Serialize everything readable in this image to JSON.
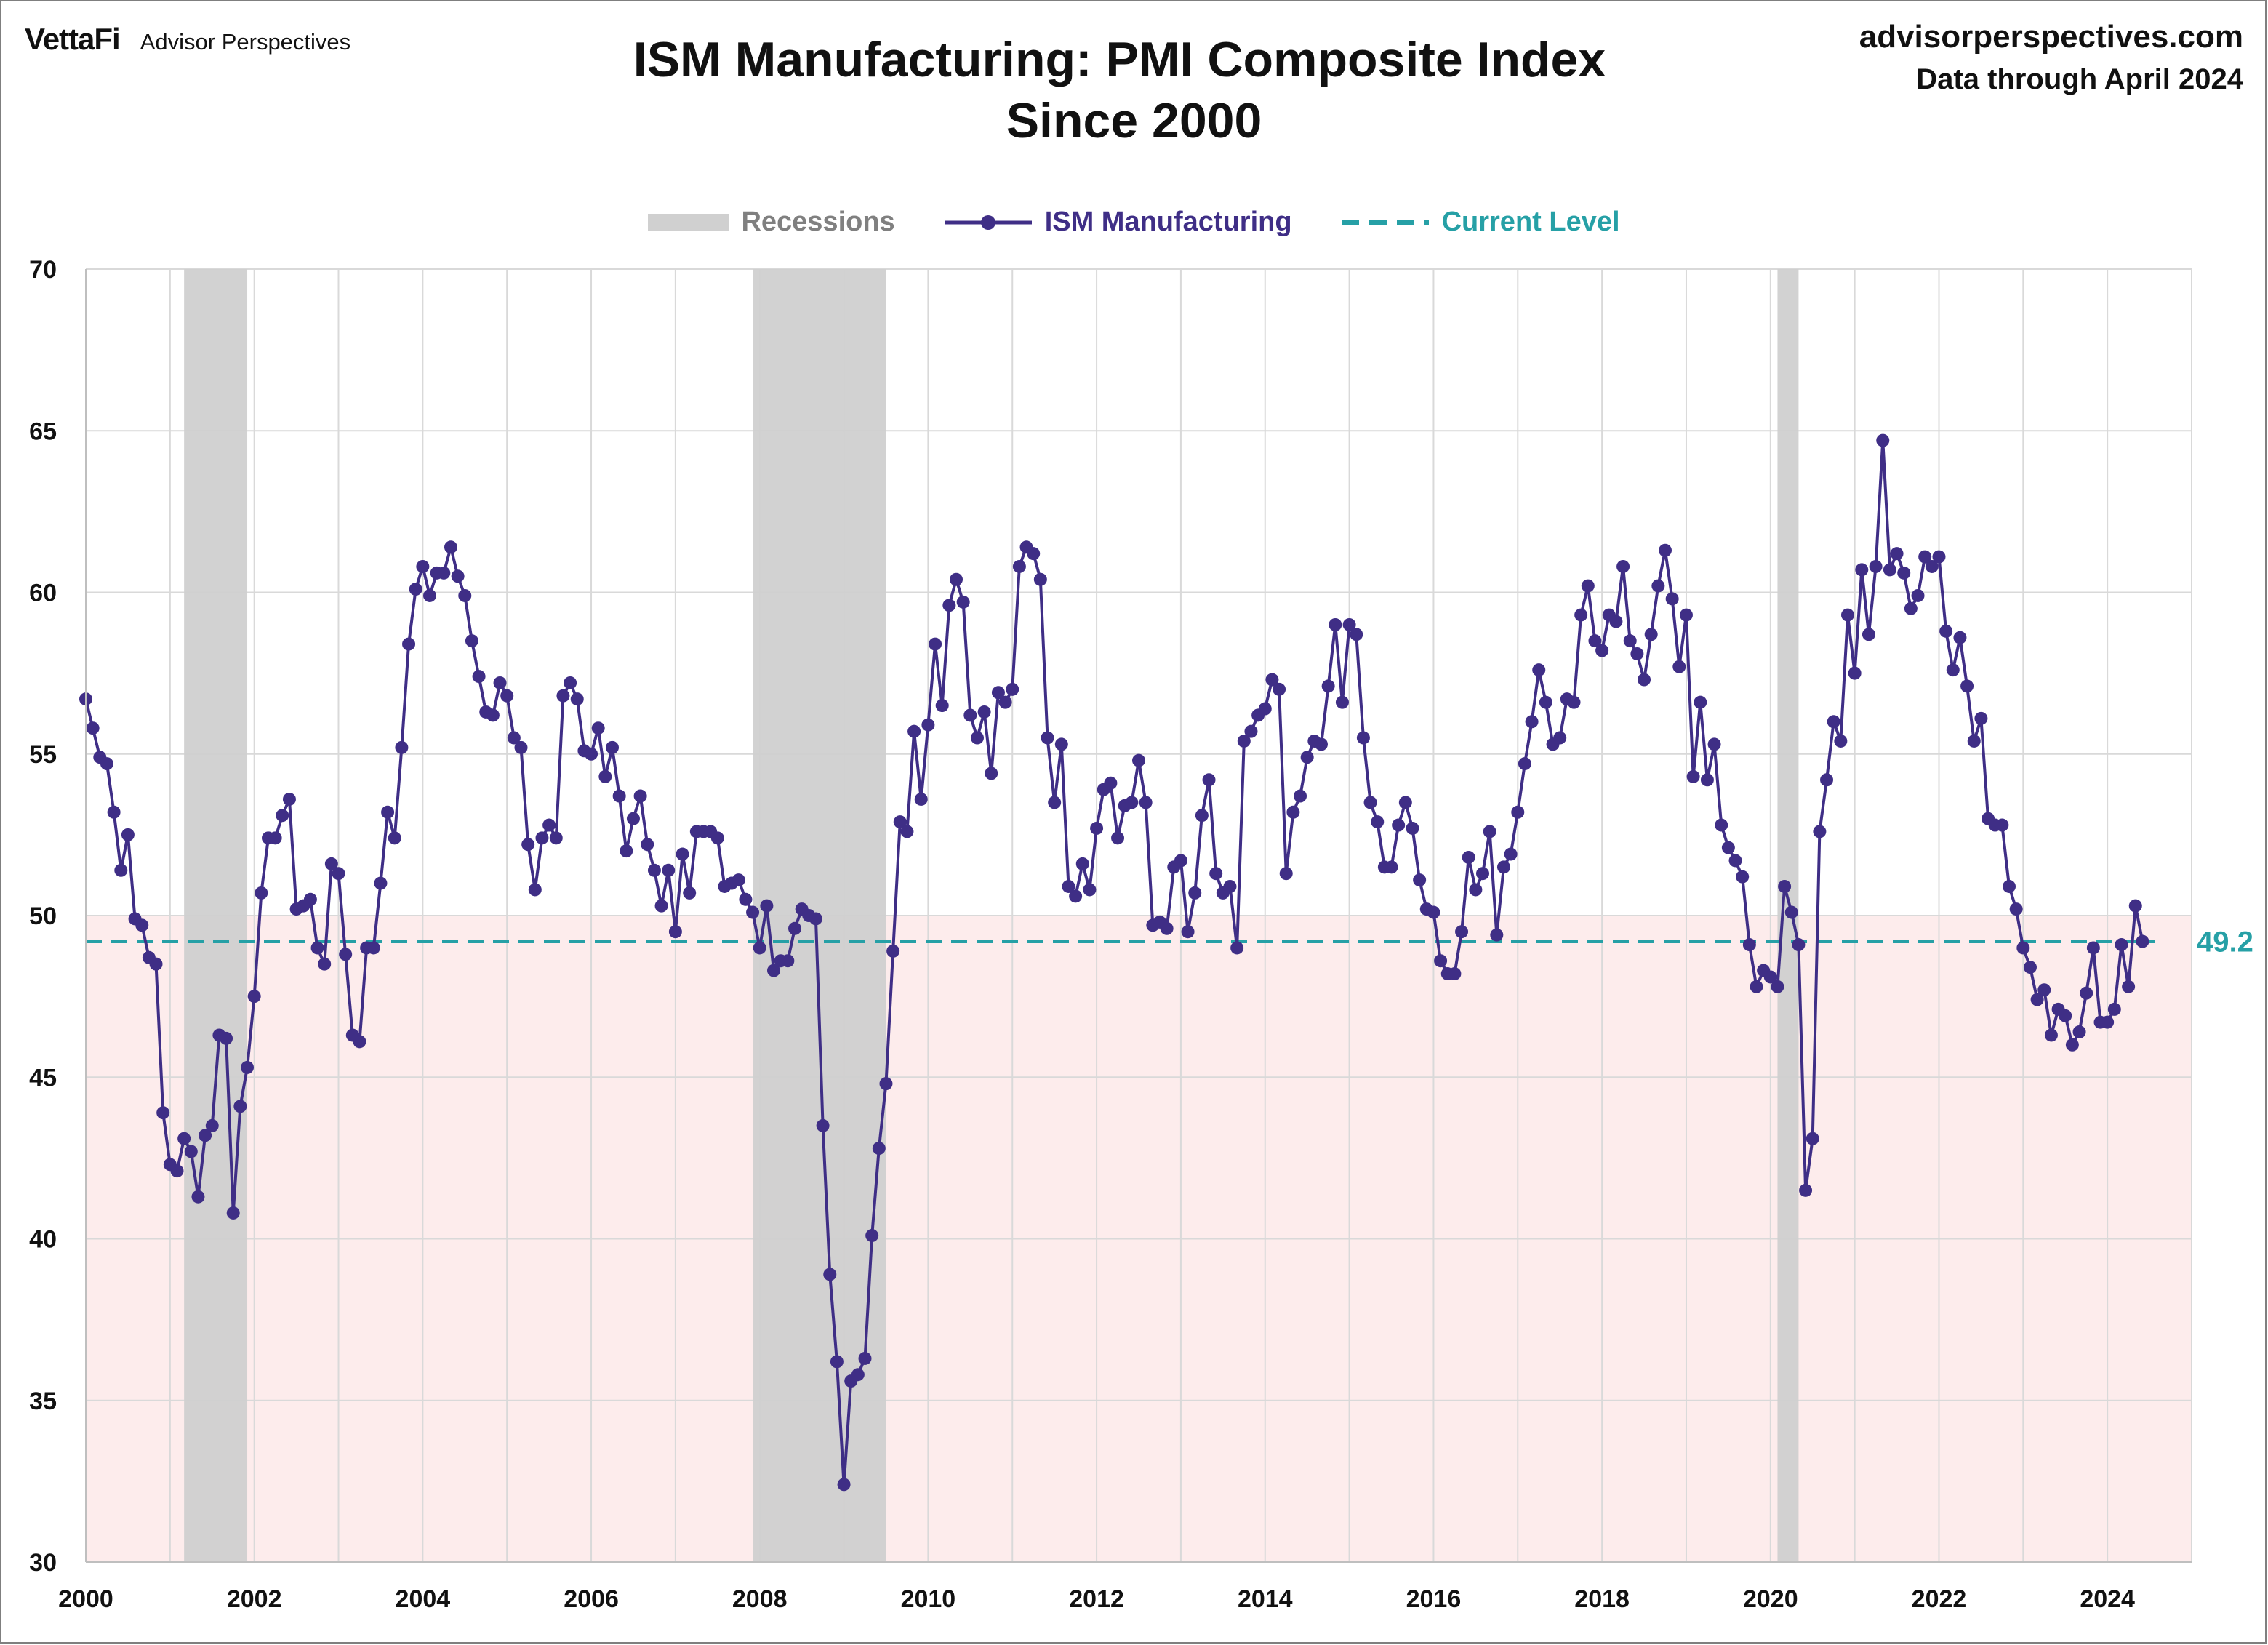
{
  "header": {
    "brand_logo": "VettaFi",
    "brand_name": "Advisor Perspectives",
    "title_line1": "ISM Manufacturing: PMI Composite Index",
    "title_line2": "Since 2000",
    "site": "advisorperspectives.com",
    "data_through": "Data through April 2024"
  },
  "legend": {
    "recessions": "Recessions",
    "series": "ISM Manufacturing",
    "current": "Current Level"
  },
  "colors": {
    "series": "#3f2e86",
    "current": "#26a0a6",
    "recession": "#d0d0d0",
    "contraction_zone": "#fdecec",
    "grid": "#d9d9d9"
  },
  "chart_data": {
    "type": "line",
    "title": "ISM Manufacturing: PMI Composite Index",
    "subtitle": "Since 2000",
    "xlim": [
      2000,
      2025
    ],
    "ylim": [
      30,
      70
    ],
    "x_ticks": [
      "2000",
      "2002",
      "2004",
      "2006",
      "2008",
      "2010",
      "2012",
      "2014",
      "2016",
      "2018",
      "2020",
      "2022",
      "2024"
    ],
    "y_ticks": [
      "30",
      "35",
      "40",
      "45",
      "50",
      "55",
      "60",
      "65",
      "70"
    ],
    "grid": true,
    "legend_position": "top-center",
    "contraction_threshold": 50,
    "current_level": 49.2,
    "current_level_label": "49.2",
    "recessions": [
      {
        "start": "2001-03",
        "end": "2001-11"
      },
      {
        "start": "2007-12",
        "end": "2009-06"
      },
      {
        "start": "2020-02",
        "end": "2020-04"
      }
    ],
    "series": [
      {
        "name": "ISM Manufacturing",
        "start": "2000-01",
        "frequency": "monthly",
        "values": [
          56.7,
          55.8,
          54.9,
          54.7,
          53.2,
          51.4,
          52.5,
          49.9,
          49.7,
          48.7,
          48.5,
          43.9,
          42.3,
          42.1,
          43.1,
          42.7,
          41.3,
          43.2,
          43.5,
          46.3,
          46.2,
          40.8,
          44.1,
          45.3,
          47.5,
          50.7,
          52.4,
          52.4,
          53.1,
          53.6,
          50.2,
          50.3,
          50.5,
          49.0,
          48.5,
          51.6,
          51.3,
          48.8,
          46.3,
          46.1,
          49.0,
          49.0,
          51.0,
          53.2,
          52.4,
          55.2,
          58.4,
          60.1,
          60.8,
          59.9,
          60.6,
          60.6,
          61.4,
          60.5,
          59.9,
          58.5,
          57.4,
          56.3,
          56.2,
          57.2,
          56.8,
          55.5,
          55.2,
          52.2,
          50.8,
          52.4,
          52.8,
          52.4,
          56.8,
          57.2,
          56.7,
          55.1,
          55.0,
          55.8,
          54.3,
          55.2,
          53.7,
          52.0,
          53.0,
          53.7,
          52.2,
          51.4,
          50.3,
          51.4,
          49.5,
          51.9,
          50.7,
          52.6,
          52.6,
          52.6,
          52.4,
          50.9,
          51.0,
          51.1,
          50.5,
          50.1,
          49.0,
          50.3,
          48.3,
          48.6,
          48.6,
          49.6,
          50.2,
          50.0,
          49.9,
          43.5,
          38.9,
          36.2,
          32.4,
          35.6,
          35.8,
          36.3,
          40.1,
          42.8,
          44.8,
          48.9,
          52.9,
          52.6,
          55.7,
          53.6,
          55.9,
          58.4,
          56.5,
          59.6,
          60.4,
          59.7,
          56.2,
          55.5,
          56.3,
          54.4,
          56.9,
          56.6,
          57.0,
          60.8,
          61.4,
          61.2,
          60.4,
          55.5,
          53.5,
          55.3,
          50.9,
          50.6,
          51.6,
          50.8,
          52.7,
          53.9,
          54.1,
          52.4,
          53.4,
          53.5,
          54.8,
          53.5,
          49.7,
          49.8,
          49.6,
          51.5,
          51.7,
          49.5,
          50.7,
          53.1,
          54.2,
          51.3,
          50.7,
          50.9,
          49.0,
          55.4,
          55.7,
          56.2,
          56.4,
          57.3,
          57.0,
          51.3,
          53.2,
          53.7,
          54.9,
          55.4,
          55.3,
          57.1,
          59.0,
          56.6,
          59.0,
          58.7,
          55.5,
          53.5,
          52.9,
          51.5,
          51.5,
          52.8,
          53.5,
          52.7,
          51.1,
          50.2,
          50.1,
          48.6,
          48.2,
          48.2,
          49.5,
          51.8,
          50.8,
          51.3,
          52.6,
          49.4,
          51.5,
          51.9,
          53.2,
          54.7,
          56.0,
          57.6,
          56.6,
          55.3,
          55.5,
          56.7,
          56.6,
          59.3,
          60.2,
          58.5,
          58.2,
          59.3,
          59.1,
          60.8,
          58.5,
          58.1,
          57.3,
          58.7,
          60.2,
          61.3,
          59.8,
          57.7,
          59.3,
          54.3,
          56.6,
          54.2,
          55.3,
          52.8,
          52.1,
          51.7,
          51.2,
          49.1,
          47.8,
          48.3,
          48.1,
          47.8,
          50.9,
          50.1,
          49.1,
          41.5,
          43.1,
          52.6,
          54.2,
          56.0,
          55.4,
          59.3,
          57.5,
          60.7,
          58.7,
          60.8,
          64.7,
          60.7,
          61.2,
          60.6,
          59.5,
          59.9,
          61.1,
          60.8,
          61.1,
          58.8,
          57.6,
          58.6,
          57.1,
          55.4,
          56.1,
          53.0,
          52.8,
          52.8,
          50.9,
          50.2,
          49.0,
          48.4,
          47.4,
          47.7,
          46.3,
          47.1,
          46.9,
          46.0,
          46.4,
          47.6,
          49.0,
          46.7,
          46.7,
          47.1,
          49.1,
          47.8,
          50.3,
          49.2
        ]
      }
    ]
  }
}
